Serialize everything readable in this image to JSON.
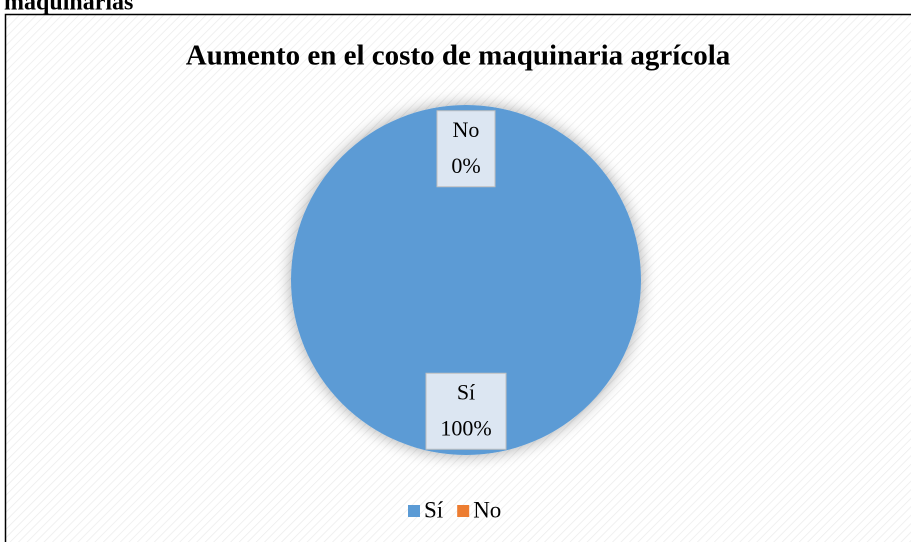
{
  "caption": "maquinarias",
  "chart_data": {
    "type": "pie",
    "title": "Aumento en el costo de maquinaria agrícola",
    "categories": [
      "Sí",
      "No"
    ],
    "values": [
      100,
      0
    ],
    "value_labels": [
      "100%",
      "0%"
    ],
    "colors": [
      "#5b9bd5",
      "#ed7d31"
    ],
    "legend": "bottom"
  }
}
